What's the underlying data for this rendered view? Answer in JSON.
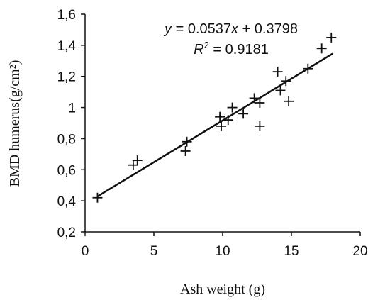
{
  "chart_data": {
    "type": "scatter",
    "xlabel": "Ash weight (g)",
    "ylabel": "BMD humerus(g/cm²)",
    "xlim": [
      0,
      20
    ],
    "ylim": [
      0.2,
      1.6
    ],
    "x_ticks": [
      "0",
      "5",
      "10",
      "15",
      "20"
    ],
    "y_ticks": [
      "0,2",
      "0,4",
      "0,6",
      "0,8",
      "1",
      "1,2",
      "1,4",
      "1,6"
    ],
    "marker": "plus",
    "grid": false,
    "points": [
      {
        "x": 0.9,
        "y": 0.42
      },
      {
        "x": 3.5,
        "y": 0.63
      },
      {
        "x": 3.8,
        "y": 0.66
      },
      {
        "x": 7.3,
        "y": 0.72
      },
      {
        "x": 7.4,
        "y": 0.78
      },
      {
        "x": 9.8,
        "y": 0.94
      },
      {
        "x": 9.9,
        "y": 0.88
      },
      {
        "x": 10.4,
        "y": 0.92
      },
      {
        "x": 10.7,
        "y": 1.0
      },
      {
        "x": 11.5,
        "y": 0.96
      },
      {
        "x": 12.3,
        "y": 1.06
      },
      {
        "x": 12.7,
        "y": 1.03
      },
      {
        "x": 12.7,
        "y": 0.88
      },
      {
        "x": 14.0,
        "y": 1.23
      },
      {
        "x": 14.2,
        "y": 1.11
      },
      {
        "x": 14.6,
        "y": 1.17
      },
      {
        "x": 14.8,
        "y": 1.04
      },
      {
        "x": 16.2,
        "y": 1.25
      },
      {
        "x": 17.2,
        "y": 1.38
      },
      {
        "x": 17.9,
        "y": 1.45
      }
    ],
    "trendline": {
      "slope": 0.0537,
      "intercept": 0.3798,
      "x_range": [
        0.9,
        18.0
      ],
      "equation": {
        "y": "y",
        "equals": " = 0.0537",
        "x": "x",
        "rest": " + 0.3798"
      },
      "r2": {
        "r": "R",
        "sup": "2",
        "rest": " = 0.9181"
      }
    }
  }
}
